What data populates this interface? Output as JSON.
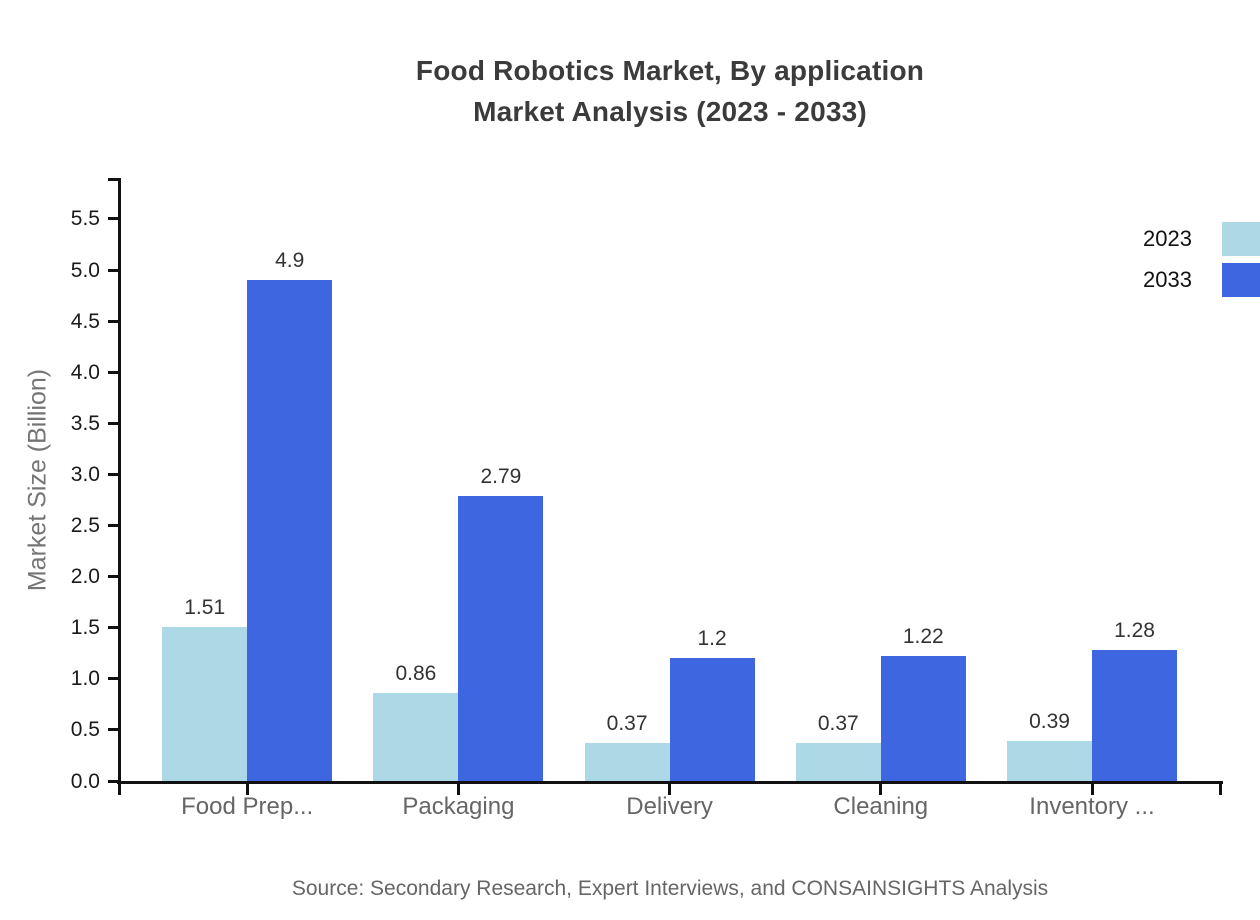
{
  "chart": {
    "title_line1": "Food Robotics Market, By application",
    "title_line2": "Market Analysis (2023 - 2033)",
    "source": "Source: Secondary Research, Expert Interviews, and CONSAINSIGHTS Analysis"
  },
  "chart_data": {
    "type": "bar",
    "title": "Food Robotics Market, By application Market Analysis (2023 - 2033)",
    "categories": [
      "Food Prep...",
      "Packaging",
      "Delivery",
      "Cleaning",
      "Inventory ..."
    ],
    "series": [
      {
        "name": "2023",
        "color": "#ADD8E6",
        "values": [
          1.51,
          0.86,
          0.37,
          0.37,
          0.39
        ],
        "labels": [
          "1.51",
          "0.86",
          "0.37",
          "0.37",
          "0.39"
        ]
      },
      {
        "name": "2033",
        "color": "#3E66E0",
        "values": [
          4.9,
          2.79,
          1.2,
          1.22,
          1.28
        ],
        "labels": [
          "4.9",
          "2.79",
          "1.2",
          "1.22",
          "1.28"
        ]
      }
    ],
    "xlabel": "",
    "ylabel": "Market Size (Billion)",
    "ylim": [
      0,
      5.9
    ],
    "yticks": [
      "0.0",
      "0.5",
      "1.0",
      "1.5",
      "2.0",
      "2.5",
      "3.0",
      "3.5",
      "4.0",
      "4.5",
      "5.0",
      "5.5"
    ],
    "grid": false,
    "legend_position": "top-right",
    "axis_color": "#111111",
    "text_colors": {
      "title": "#3b3b3b",
      "tick_labels": "#1a1a1a",
      "category_labels": "#666666",
      "value_labels": "#333333",
      "axis_title": "#757575",
      "source": "#666666"
    }
  }
}
